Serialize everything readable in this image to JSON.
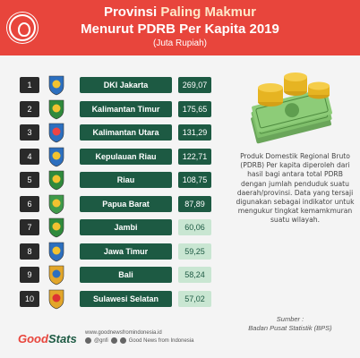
{
  "header": {
    "title_prefix": "Provinsi ",
    "title_highlight": "Paling Makmur",
    "title_line2": "Menurut PDRB Per Kapita 2019",
    "subtitle": "(Juta Rupiah)"
  },
  "rows": [
    {
      "rank": "1",
      "name": "DKI Jakarta",
      "value": "269,07"
    },
    {
      "rank": "2",
      "name": "Kalimantan Timur",
      "value": "175,65"
    },
    {
      "rank": "3",
      "name": "Kalimantan Utara",
      "value": "131,29"
    },
    {
      "rank": "4",
      "name": "Kepulauan Riau",
      "value": "122,71"
    },
    {
      "rank": "5",
      "name": "Riau",
      "value": "108,75"
    },
    {
      "rank": "6",
      "name": "Papua Barat",
      "value": "87,89"
    },
    {
      "rank": "7",
      "name": "Jambi",
      "value": "60,06"
    },
    {
      "rank": "8",
      "name": "Jawa Timur",
      "value": "59,25"
    },
    {
      "rank": "9",
      "name": "Bali",
      "value": "58,24"
    },
    {
      "rank": "10",
      "name": "Sulawesi Selatan",
      "value": "57,02"
    }
  ],
  "description": "Produk Domestik Regional Bruto (PDRB) Per kapita diperoleh dari hasil bagi antara total PDRB dengan jumlah penduduk suatu daerah/provinsi. Data yang tersaji digunakan sebagai indikator untuk mengukur tingkat kemamkmuran suatu wilayah.",
  "source": {
    "label": "Sumber :",
    "value": "Badan Pusat Statistik (BPS)"
  },
  "footer": {
    "brand_part1": "Good",
    "brand_part2": "Stats",
    "website": "www.goodnewsfromindonesia.id",
    "handle": "@gnfi",
    "social_text": "Good News from Indonesia"
  },
  "colors": {
    "header_red": "#e8453c",
    "dark_green": "#1d5a43",
    "light_green": "#c9e6d2"
  }
}
